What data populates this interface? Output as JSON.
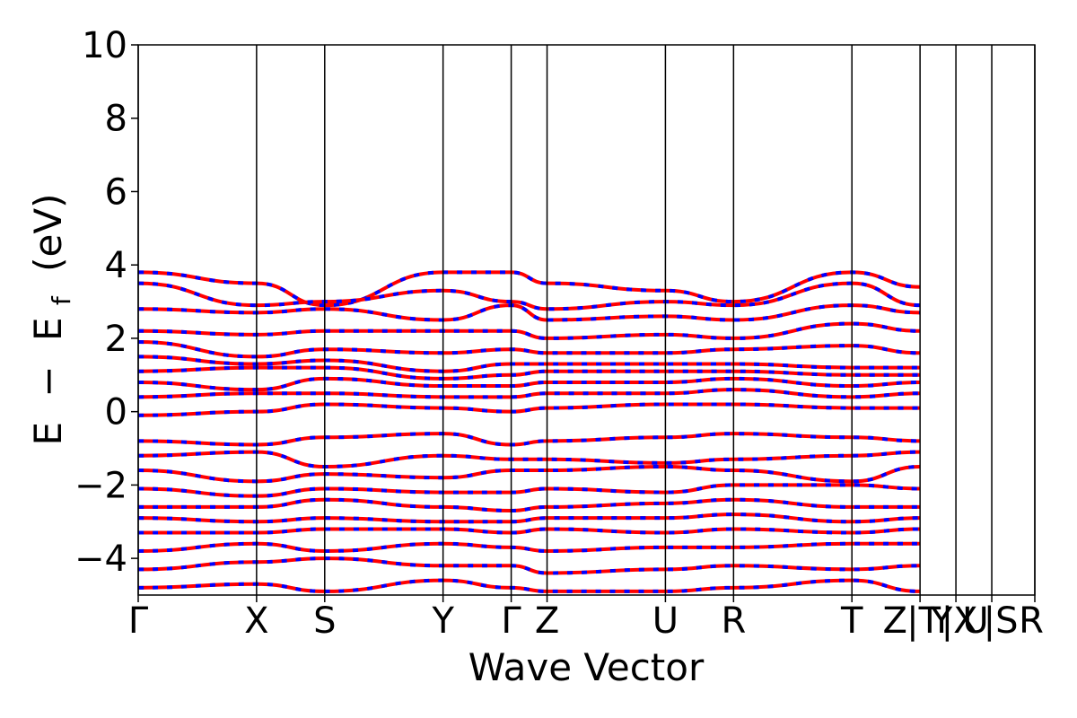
{
  "chart_data": {
    "type": "line",
    "title": "",
    "xlabel": "Wave Vector",
    "ylabel_parts": {
      "a": "E",
      "dash": "−",
      "b": "E",
      "sub": "f",
      "unit": "(eV)"
    },
    "ylim": [
      -5,
      10
    ],
    "yticks": [
      -4,
      -2,
      0,
      2,
      4,
      6,
      8,
      10
    ],
    "ytick_labels": [
      "−4",
      "−2",
      "0",
      "2",
      "4",
      "6",
      "8",
      "10"
    ],
    "xlim": [
      0,
      25
    ],
    "kpoint_positions": [
      0,
      3.3,
      5.2,
      8.5,
      10.4,
      11.4,
      14.7,
      16.6,
      19.9,
      21.8,
      22.8,
      23.8,
      25
    ],
    "kpoint_labels": [
      {
        "label": "Γ",
        "x": 0
      },
      {
        "label": "X",
        "x": 3.3
      },
      {
        "label": "S",
        "x": 5.2
      },
      {
        "label": "Y",
        "x": 8.5
      },
      {
        "label": "Γ",
        "x": 10.4
      },
      {
        "label": "Z",
        "x": 11.4
      },
      {
        "label": "U",
        "x": 14.7
      },
      {
        "label": "R",
        "x": 16.6
      },
      {
        "label": "T",
        "x": 19.9
      },
      {
        "label": "Z",
        "x": 21.1
      },
      {
        "label": "|T",
        "x": 21.9
      },
      {
        "label": "Y",
        "x": 22.4
      },
      {
        "label": "|X",
        "x": 22.9
      },
      {
        "label": "U",
        "x": 23.35
      },
      {
        "label": "|S",
        "x": 24.05
      },
      {
        "label": "R",
        "x": 24.9
      }
    ],
    "series_colors": [
      "#ff0000",
      "#0000ff"
    ],
    "series_styles": [
      "solid",
      "dashed"
    ],
    "series": [
      {
        "x": [
          0,
          3.3,
          5.2,
          8.5,
          10.4,
          11.4,
          14.7,
          16.6,
          19.9,
          21.8
        ],
        "values": [
          3.8,
          3.5,
          2.9,
          3.8,
          3.8,
          3.5,
          3.3,
          3.0,
          3.8,
          3.4
        ]
      },
      {
        "x": [
          0,
          3.3,
          5.2,
          8.5,
          10.4,
          11.4,
          14.7,
          16.6,
          19.9,
          21.8
        ],
        "values": [
          3.5,
          2.9,
          3.0,
          3.3,
          3.0,
          2.8,
          3.0,
          2.9,
          3.5,
          2.9
        ]
      },
      {
        "x": [
          0,
          3.3,
          5.2,
          8.5,
          10.4,
          11.4,
          14.7,
          16.6,
          19.9,
          21.8
        ],
        "values": [
          2.8,
          2.7,
          2.8,
          2.5,
          2.9,
          2.5,
          2.6,
          2.5,
          2.9,
          2.7
        ]
      },
      {
        "x": [
          0,
          3.3,
          5.2,
          8.5,
          10.4,
          11.4,
          14.7,
          16.6,
          19.9,
          21.8
        ],
        "values": [
          2.2,
          2.1,
          2.2,
          2.2,
          2.2,
          2.0,
          2.1,
          2.0,
          2.4,
          2.2
        ]
      },
      {
        "x": [
          0,
          3.3,
          5.2,
          8.5,
          10.4,
          11.4,
          14.7,
          16.6,
          19.9,
          21.8
        ],
        "values": [
          1.9,
          1.5,
          1.7,
          1.6,
          1.7,
          1.6,
          1.6,
          1.7,
          1.8,
          1.6
        ]
      },
      {
        "x": [
          0,
          3.3,
          5.2,
          8.5,
          10.4,
          11.4,
          14.7,
          16.6,
          19.9,
          21.8
        ],
        "values": [
          1.5,
          1.3,
          1.4,
          1.1,
          1.3,
          1.3,
          1.3,
          1.3,
          1.2,
          1.2
        ]
      },
      {
        "x": [
          0,
          3.3,
          5.2,
          8.5,
          10.4,
          11.4,
          14.7,
          16.6,
          19.9,
          21.8
        ],
        "values": [
          1.1,
          1.2,
          1.2,
          0.9,
          1.0,
          1.1,
          1.1,
          1.1,
          1.0,
          1.0
        ]
      },
      {
        "x": [
          0,
          3.3,
          5.2,
          8.5,
          10.4,
          11.4,
          14.7,
          16.6,
          19.9,
          21.8
        ],
        "values": [
          0.8,
          0.6,
          0.9,
          0.7,
          0.7,
          0.8,
          0.8,
          0.9,
          0.7,
          0.8
        ]
      },
      {
        "x": [
          0,
          3.3,
          5.2,
          8.5,
          10.4,
          11.4,
          14.7,
          16.6,
          19.9,
          21.8
        ],
        "values": [
          0.4,
          0.5,
          0.5,
          0.4,
          0.4,
          0.5,
          0.5,
          0.6,
          0.4,
          0.5
        ]
      },
      {
        "x": [
          0,
          3.3,
          5.2,
          8.5,
          10.4,
          11.4,
          14.7,
          16.6,
          19.9,
          21.8
        ],
        "values": [
          -0.1,
          0.0,
          0.2,
          0.1,
          0.0,
          0.1,
          0.2,
          0.2,
          0.1,
          0.1
        ]
      },
      {
        "x": [
          0,
          3.3,
          5.2,
          8.5,
          10.4,
          11.4,
          14.7,
          16.6,
          19.9,
          21.8
        ],
        "values": [
          -0.8,
          -0.9,
          -0.7,
          -0.6,
          -0.9,
          -0.8,
          -0.7,
          -0.6,
          -0.7,
          -0.8
        ]
      },
      {
        "x": [
          0,
          3.3,
          5.2,
          8.5,
          10.4,
          11.4,
          14.7,
          16.6,
          19.9,
          21.8
        ],
        "values": [
          -1.2,
          -1.1,
          -1.5,
          -1.2,
          -1.3,
          -1.3,
          -1.4,
          -1.3,
          -1.2,
          -1.1
        ]
      },
      {
        "x": [
          0,
          3.3,
          5.2,
          8.5,
          10.4,
          11.4,
          14.7,
          16.6,
          19.9,
          21.8
        ],
        "values": [
          -1.6,
          -1.9,
          -1.7,
          -1.8,
          -1.6,
          -1.6,
          -1.5,
          -1.6,
          -1.9,
          -1.5
        ]
      },
      {
        "x": [
          0,
          3.3,
          5.2,
          8.5,
          10.4,
          11.4,
          14.7,
          16.6,
          19.9,
          21.8
        ],
        "values": [
          -2.1,
          -2.3,
          -2.1,
          -2.2,
          -2.2,
          -2.1,
          -2.2,
          -2.0,
          -2.0,
          -2.1
        ]
      },
      {
        "x": [
          0,
          3.3,
          5.2,
          8.5,
          10.4,
          11.4,
          14.7,
          16.6,
          19.9,
          21.8
        ],
        "values": [
          -2.6,
          -2.6,
          -2.4,
          -2.6,
          -2.7,
          -2.6,
          -2.5,
          -2.4,
          -2.6,
          -2.6
        ]
      },
      {
        "x": [
          0,
          3.3,
          5.2,
          8.5,
          10.4,
          11.4,
          14.7,
          16.6,
          19.9,
          21.8
        ],
        "values": [
          -2.9,
          -3.0,
          -2.9,
          -3.0,
          -3.0,
          -2.9,
          -2.9,
          -2.8,
          -3.0,
          -2.9
        ]
      },
      {
        "x": [
          0,
          3.3,
          5.2,
          8.5,
          10.4,
          11.4,
          14.7,
          16.6,
          19.9,
          21.8
        ],
        "values": [
          -3.3,
          -3.3,
          -3.2,
          -3.2,
          -3.3,
          -3.2,
          -3.3,
          -3.2,
          -3.3,
          -3.2
        ]
      },
      {
        "x": [
          0,
          3.3,
          5.2,
          8.5,
          10.4,
          11.4,
          14.7,
          16.6,
          19.9,
          21.8
        ],
        "values": [
          -3.8,
          -3.6,
          -3.8,
          -3.6,
          -3.7,
          -3.8,
          -3.7,
          -3.7,
          -3.6,
          -3.6
        ]
      },
      {
        "x": [
          0,
          3.3,
          5.2,
          8.5,
          10.4,
          11.4,
          14.7,
          16.6,
          19.9,
          21.8
        ],
        "values": [
          -4.3,
          -4.1,
          -4.0,
          -4.2,
          -4.2,
          -4.4,
          -4.3,
          -4.2,
          -4.3,
          -4.2
        ]
      },
      {
        "x": [
          0,
          3.3,
          5.2,
          8.5,
          10.4,
          11.4,
          14.7,
          16.6,
          19.9,
          21.8
        ],
        "values": [
          -4.8,
          -4.7,
          -4.9,
          -4.6,
          -4.8,
          -4.9,
          -4.9,
          -4.8,
          -4.6,
          -4.9
        ]
      }
    ]
  }
}
